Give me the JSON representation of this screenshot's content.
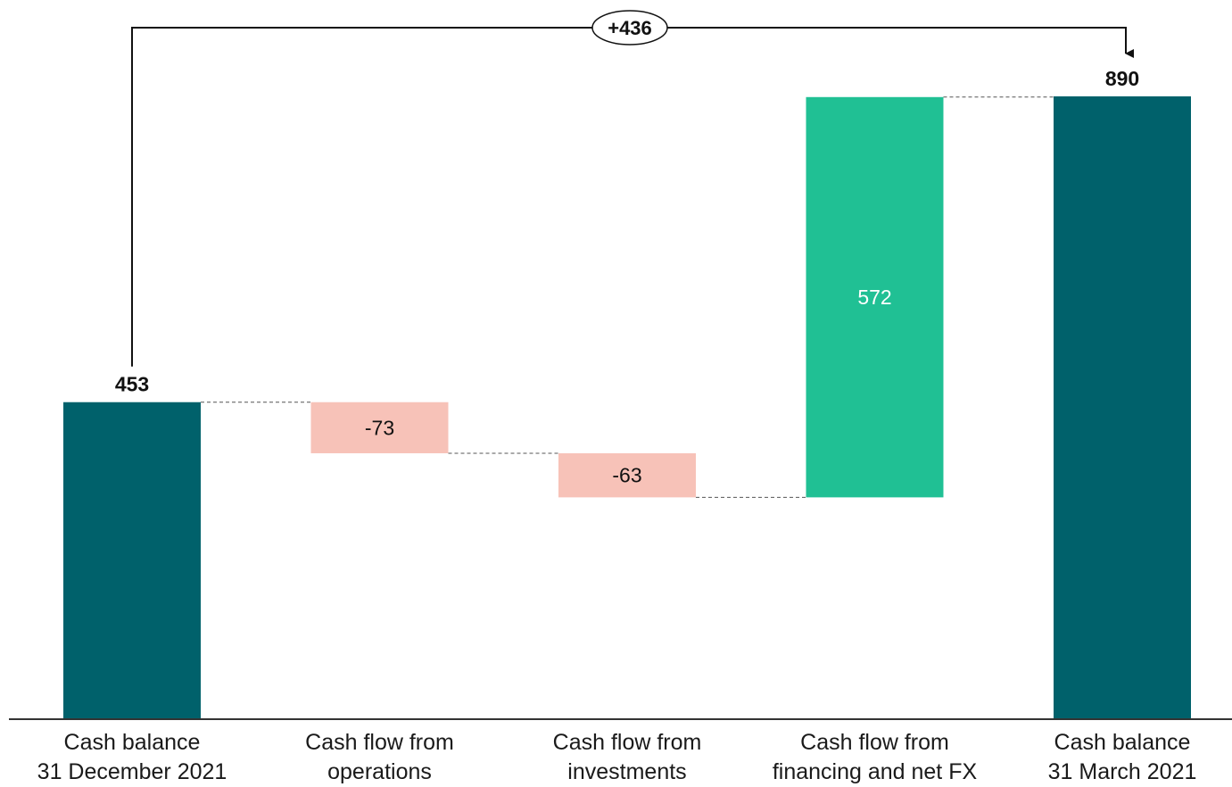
{
  "chart_data": {
    "type": "waterfall",
    "title": "",
    "xlabel": "",
    "ylabel": "",
    "ylim": [
      0,
      890
    ],
    "grid": false,
    "categories": [
      [
        "Cash balance",
        "31 December 2021"
      ],
      [
        "Cash flow from",
        "operations"
      ],
      [
        "Cash flow from",
        "investments"
      ],
      [
        "Cash flow from",
        "financing and net FX"
      ],
      [
        "Cash balance",
        "31 March 2021"
      ]
    ],
    "bars": [
      {
        "kind": "total",
        "value": 453,
        "label": "453"
      },
      {
        "kind": "delta",
        "value": -73,
        "label": "-73"
      },
      {
        "kind": "delta",
        "value": -63,
        "label": "-63"
      },
      {
        "kind": "delta",
        "value": 572,
        "label": "572"
      },
      {
        "kind": "total",
        "value": 890,
        "label": "890"
      }
    ],
    "change_annotation": {
      "label": "+436",
      "from": 0,
      "to": 4
    },
    "colors": {
      "total": "#00616b",
      "negative": "#f7c2b8",
      "positive": "#20c094",
      "axis": "#333333",
      "connector": "#555555",
      "text_dark": "#111111",
      "text_light": "#ffffff"
    }
  }
}
